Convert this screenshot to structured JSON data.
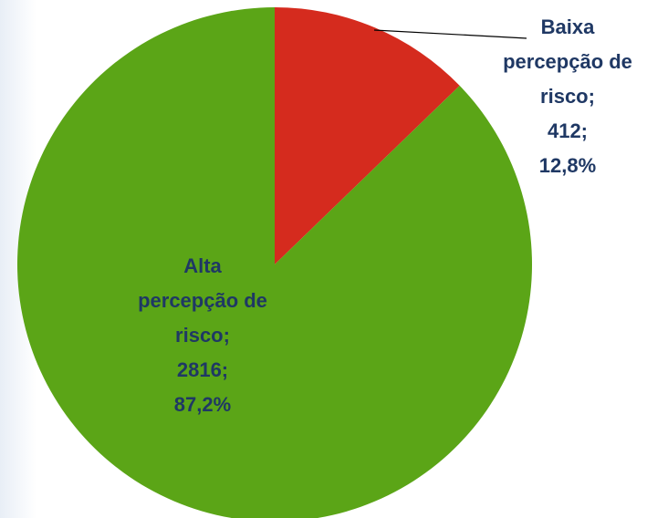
{
  "chart_data": {
    "type": "pie",
    "categories": [
      "Baixa percepção de risco;",
      "Alta percepção de risco;"
    ],
    "values": [
      412,
      2816
    ],
    "value_labels": [
      "412;",
      "2816;"
    ],
    "percentages": [
      12.8,
      87.2
    ],
    "percentage_labels": [
      "12,8%",
      "87,2%"
    ],
    "colors": [
      "#d52b1e",
      "#5ba517"
    ],
    "start_angle": 0,
    "direction": "clockwise"
  }
}
